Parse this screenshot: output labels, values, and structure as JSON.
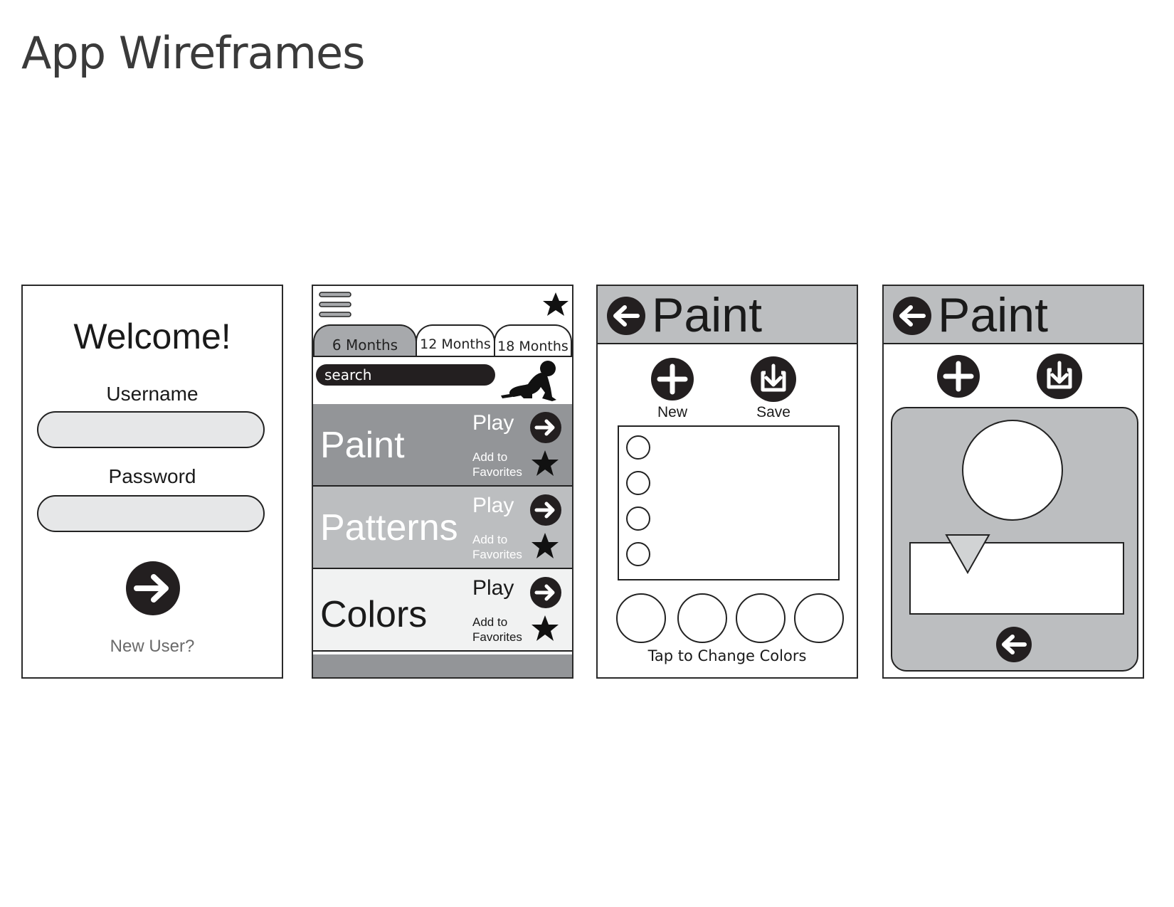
{
  "page": {
    "title": "App Wireframes"
  },
  "login": {
    "welcome": "Welcome!",
    "username_label": "Username",
    "password_label": "Password",
    "new_user": "New User?"
  },
  "menu": {
    "tabs": [
      {
        "label": "6 Months",
        "active": true
      },
      {
        "label": "12 Months",
        "active": false
      },
      {
        "label": "18 Months",
        "active": false
      }
    ],
    "search_placeholder": "search",
    "activities": [
      {
        "title": "Paint",
        "play": "Play",
        "fav": "Add to Favorites",
        "bg": "#939598",
        "fg": "#ffffff"
      },
      {
        "title": "Patterns",
        "play": "Play",
        "fav": "Add to Favorites",
        "bg": "#bcbec0",
        "fg": "#ffffff"
      },
      {
        "title": "Colors",
        "play": "Play",
        "fav": "Add to Favorites",
        "bg": "#f1f2f2",
        "fg": "#1a1a1a"
      }
    ]
  },
  "paint_screen": {
    "title": "Paint",
    "new_label": "New",
    "save_label": "Save",
    "tap_caption": "Tap to Change Colors"
  },
  "paint_screen_2": {
    "title": "Paint"
  },
  "colors": {
    "dark": "#231f20",
    "mid_gray": "#939598",
    "light_gray": "#bcbec0",
    "input_gray": "#e6e7e8"
  },
  "icons": [
    "hamburger-icon",
    "star-icon",
    "baby-icon",
    "arrow-right-icon",
    "arrow-left-icon",
    "plus-icon",
    "download-icon"
  ]
}
